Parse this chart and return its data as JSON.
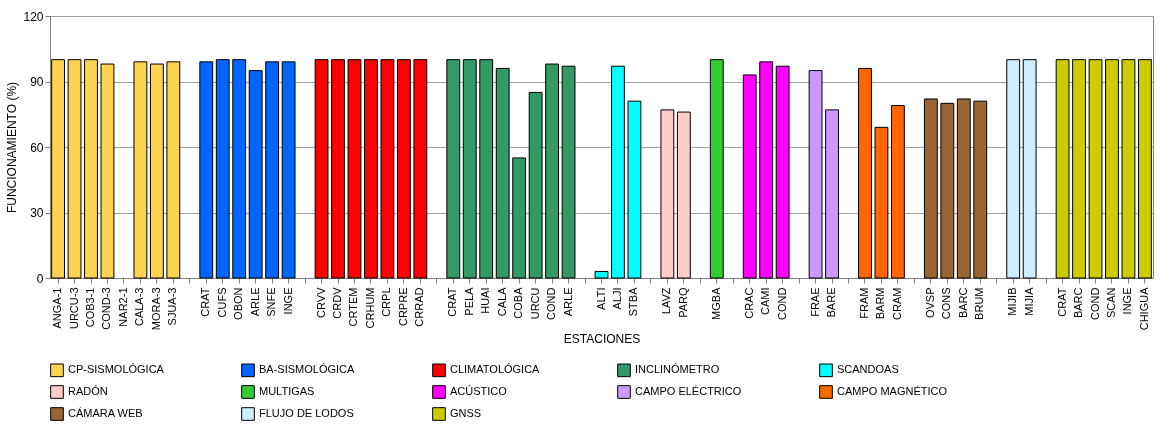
{
  "chart_data": {
    "type": "bar",
    "xlabel": "ESTACIONES",
    "ylabel": "FUNCIONAMIENTO (%)",
    "categories": [
      "ANGA-1",
      "URCU-3",
      "COB3-1",
      "COND-3",
      "NAR2-1",
      "CALA-3",
      "MORA-3",
      "SJUA-3",
      null,
      "CRAT",
      "CUFS",
      "OBON",
      "ARLE",
      "SNFE",
      "INGE",
      null,
      "CRVV",
      "CRDV",
      "CRTEM",
      "CRHUM",
      "CRPL",
      "CRPRE",
      "CRRAD",
      null,
      "CRAT",
      "PELA",
      "HUAI",
      "CALA",
      "COBA",
      "URCU",
      "COND",
      "ARLE",
      null,
      "ALTI",
      "ALJI",
      "STBA",
      null,
      "LAVZ",
      "PARQ",
      null,
      "MGBA",
      null,
      "CRAC",
      "CAMI",
      "COND",
      null,
      "FRAE",
      "BARE",
      null,
      "FRAM",
      "BARM",
      "CRAM",
      null,
      "OVSP",
      "CONS",
      "BARC",
      "BRUM",
      null,
      "MIJIB",
      "MIJIA",
      null,
      "CRAT",
      "BARC",
      "COND",
      "SCAN",
      "INGE",
      "CHIGUA"
    ],
    "ylim": [
      0,
      120
    ],
    "yticks": [
      0,
      30,
      60,
      90,
      120
    ],
    "grid": "y",
    "legend": "bottom",
    "series": [
      {
        "name": "CP-SISMOLÓGICA",
        "color": "#ffd34f",
        "values": [
          100,
          100,
          100,
          98,
          null,
          99,
          98,
          99,
          null,
          null,
          null,
          null,
          null,
          null,
          null,
          null,
          null,
          null,
          null,
          null,
          null,
          null,
          null,
          null,
          null,
          null,
          null,
          null,
          null,
          null,
          null,
          null,
          null,
          null,
          null,
          null,
          null,
          null,
          null,
          null,
          null,
          null,
          null,
          null,
          null,
          null,
          null,
          null,
          null,
          null,
          null,
          null,
          null,
          null,
          null,
          null,
          null,
          null,
          null,
          null,
          null,
          null,
          null,
          null,
          null,
          null,
          null
        ]
      },
      {
        "name": "BA-SISMOLÓGICA",
        "color": "#0066ff",
        "values": [
          null,
          null,
          null,
          null,
          null,
          null,
          null,
          null,
          null,
          99,
          100,
          100,
          95,
          99,
          99,
          null,
          null,
          null,
          null,
          null,
          null,
          null,
          null,
          null,
          null,
          null,
          null,
          null,
          null,
          null,
          null,
          null,
          null,
          null,
          null,
          null,
          null,
          null,
          null,
          null,
          null,
          null,
          null,
          null,
          null,
          null,
          null,
          null,
          null,
          null,
          null,
          null,
          null,
          null,
          null,
          null,
          null,
          null,
          null,
          null,
          null,
          null,
          null,
          null,
          null,
          null,
          null
        ]
      },
      {
        "name": "CLIMATOLÓGICA",
        "color": "#ff0000",
        "values": [
          null,
          null,
          null,
          null,
          null,
          null,
          null,
          null,
          null,
          null,
          null,
          null,
          null,
          null,
          null,
          null,
          100,
          100,
          100,
          100,
          100,
          100,
          100,
          null,
          null,
          null,
          null,
          null,
          null,
          null,
          null,
          null,
          null,
          null,
          null,
          null,
          null,
          null,
          null,
          null,
          null,
          null,
          null,
          null,
          null,
          null,
          null,
          null,
          null,
          null,
          null,
          null,
          null,
          null,
          null,
          null,
          null,
          null,
          null,
          null,
          null,
          null,
          null,
          null,
          null,
          null,
          null
        ]
      },
      {
        "name": "INCLINÓMETRO",
        "color": "#339966",
        "values": [
          null,
          null,
          null,
          null,
          null,
          null,
          null,
          null,
          null,
          null,
          null,
          null,
          null,
          null,
          null,
          null,
          null,
          null,
          null,
          null,
          null,
          null,
          null,
          null,
          100,
          100,
          100,
          96,
          55,
          85,
          98,
          97,
          null,
          null,
          null,
          null,
          null,
          null,
          null,
          null,
          null,
          null,
          null,
          null,
          null,
          null,
          null,
          null,
          null,
          null,
          null,
          null,
          null,
          null,
          null,
          null,
          null,
          null,
          null,
          null,
          null,
          null,
          null,
          null,
          null,
          null,
          null
        ]
      },
      {
        "name": "SCANDOAS",
        "color": "#00ffff",
        "values": [
          null,
          null,
          null,
          null,
          null,
          null,
          null,
          null,
          null,
          null,
          null,
          null,
          null,
          null,
          null,
          null,
          null,
          null,
          null,
          null,
          null,
          null,
          null,
          null,
          null,
          null,
          null,
          null,
          null,
          null,
          null,
          null,
          null,
          3,
          97,
          81,
          null,
          null,
          null,
          null,
          null,
          null,
          null,
          null,
          null,
          null,
          null,
          null,
          null,
          null,
          null,
          null,
          null,
          null,
          null,
          null,
          null,
          null,
          null,
          null,
          null,
          null,
          null,
          null,
          null,
          null,
          null
        ]
      },
      {
        "name": "RADÓN",
        "color": "#ffcccc",
        "values": [
          null,
          null,
          null,
          null,
          null,
          null,
          null,
          null,
          null,
          null,
          null,
          null,
          null,
          null,
          null,
          null,
          null,
          null,
          null,
          null,
          null,
          null,
          null,
          null,
          null,
          null,
          null,
          null,
          null,
          null,
          null,
          null,
          null,
          null,
          null,
          null,
          null,
          77,
          76,
          null,
          null,
          null,
          null,
          null,
          null,
          null,
          null,
          null,
          null,
          null,
          null,
          null,
          null,
          null,
          null,
          null,
          null,
          null,
          null,
          null,
          null,
          null,
          null,
          null,
          null,
          null,
          null
        ]
      },
      {
        "name": "MULTIGAS",
        "color": "#33cc33",
        "values": [
          null,
          null,
          null,
          null,
          null,
          null,
          null,
          null,
          null,
          null,
          null,
          null,
          null,
          null,
          null,
          null,
          null,
          null,
          null,
          null,
          null,
          null,
          null,
          null,
          null,
          null,
          null,
          null,
          null,
          null,
          null,
          null,
          null,
          null,
          null,
          null,
          null,
          null,
          null,
          null,
          100,
          null,
          null,
          null,
          null,
          null,
          null,
          null,
          null,
          null,
          null,
          null,
          null,
          null,
          null,
          null,
          null,
          null,
          null,
          null,
          null,
          null,
          null,
          null,
          null,
          null,
          null
        ]
      },
      {
        "name": "ACÚSTICO",
        "color": "#ff00ff",
        "values": [
          null,
          null,
          null,
          null,
          null,
          null,
          null,
          null,
          null,
          null,
          null,
          null,
          null,
          null,
          null,
          null,
          null,
          null,
          null,
          null,
          null,
          null,
          null,
          null,
          null,
          null,
          null,
          null,
          null,
          null,
          null,
          null,
          null,
          null,
          null,
          null,
          null,
          null,
          null,
          null,
          null,
          null,
          93,
          99,
          97,
          null,
          null,
          null,
          null,
          null,
          null,
          null,
          null,
          null,
          null,
          null,
          null,
          null,
          null,
          null,
          null,
          null,
          null,
          null,
          null,
          null,
          null
        ]
      },
      {
        "name": "CAMPO ELÉCTRICO",
        "color": "#cc99ff",
        "values": [
          null,
          null,
          null,
          null,
          null,
          null,
          null,
          null,
          null,
          null,
          null,
          null,
          null,
          null,
          null,
          null,
          null,
          null,
          null,
          null,
          null,
          null,
          null,
          null,
          null,
          null,
          null,
          null,
          null,
          null,
          null,
          null,
          null,
          null,
          null,
          null,
          null,
          null,
          null,
          null,
          null,
          null,
          null,
          null,
          null,
          null,
          95,
          77,
          null,
          null,
          null,
          null,
          null,
          null,
          null,
          null,
          null,
          null,
          null,
          null,
          null,
          null,
          null,
          null,
          null,
          null,
          null
        ]
      },
      {
        "name": "CAMPO MAGNÉTICO",
        "color": "#ff6600",
        "values": [
          null,
          null,
          null,
          null,
          null,
          null,
          null,
          null,
          null,
          null,
          null,
          null,
          null,
          null,
          null,
          null,
          null,
          null,
          null,
          null,
          null,
          null,
          null,
          null,
          null,
          null,
          null,
          null,
          null,
          null,
          null,
          null,
          null,
          null,
          null,
          null,
          null,
          null,
          null,
          null,
          null,
          null,
          null,
          null,
          null,
          null,
          null,
          null,
          null,
          96,
          69,
          79,
          null,
          null,
          null,
          null,
          null,
          null,
          null,
          null,
          null,
          null,
          null,
          null,
          null,
          null,
          null
        ]
      },
      {
        "name": "CÁMARA WEB",
        "color": "#996633",
        "values": [
          null,
          null,
          null,
          null,
          null,
          null,
          null,
          null,
          null,
          null,
          null,
          null,
          null,
          null,
          null,
          null,
          null,
          null,
          null,
          null,
          null,
          null,
          null,
          null,
          null,
          null,
          null,
          null,
          null,
          null,
          null,
          null,
          null,
          null,
          null,
          null,
          null,
          null,
          null,
          null,
          null,
          null,
          null,
          null,
          null,
          null,
          null,
          null,
          null,
          null,
          null,
          null,
          null,
          82,
          80,
          82,
          81,
          null,
          null,
          null,
          null,
          null,
          null,
          null,
          null,
          null,
          null
        ]
      },
      {
        "name": "FLUJO DE LODOS",
        "color": "#cceeff",
        "values": [
          null,
          null,
          null,
          null,
          null,
          null,
          null,
          null,
          null,
          null,
          null,
          null,
          null,
          null,
          null,
          null,
          null,
          null,
          null,
          null,
          null,
          null,
          null,
          null,
          null,
          null,
          null,
          null,
          null,
          null,
          null,
          null,
          null,
          null,
          null,
          null,
          null,
          null,
          null,
          null,
          null,
          null,
          null,
          null,
          null,
          null,
          null,
          null,
          null,
          null,
          null,
          null,
          null,
          null,
          null,
          null,
          null,
          null,
          100,
          100,
          null,
          null,
          null,
          null,
          null,
          null,
          null
        ]
      },
      {
        "name": "GNSS",
        "color": "#cccc00",
        "values": [
          null,
          null,
          null,
          null,
          null,
          null,
          null,
          null,
          null,
          null,
          null,
          null,
          null,
          null,
          null,
          null,
          null,
          null,
          null,
          null,
          null,
          null,
          null,
          null,
          null,
          null,
          null,
          null,
          null,
          null,
          null,
          null,
          null,
          null,
          null,
          null,
          null,
          null,
          null,
          null,
          null,
          null,
          null,
          null,
          null,
          null,
          null,
          null,
          null,
          null,
          null,
          null,
          null,
          null,
          null,
          null,
          null,
          null,
          null,
          null,
          null,
          100,
          100,
          100,
          100,
          100,
          100
        ]
      }
    ]
  }
}
